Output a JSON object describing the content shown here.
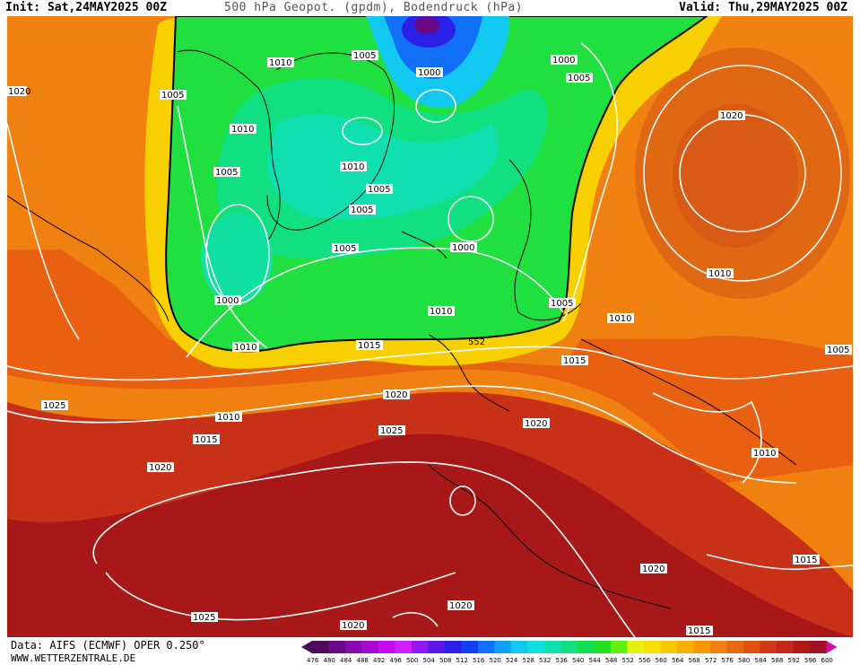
{
  "header": {
    "init": "Init: Sat,24MAY2025 00Z",
    "title": "500 hPa Geopot. (gpdm), Bodendruck (hPa)",
    "valid": "Valid: Thu,29MAY2025 00Z"
  },
  "footer": {
    "data_source": "Data: AIFS (ECMWF) OPER 0.250°",
    "website": "WWW.WETTERZENTRALE.DE"
  },
  "colorbar": {
    "ticks": [
      "476",
      "480",
      "484",
      "488",
      "492",
      "496",
      "500",
      "504",
      "508",
      "512",
      "516",
      "520",
      "524",
      "528",
      "532",
      "536",
      "540",
      "544",
      "548",
      "552",
      "556",
      "560",
      "564",
      "568",
      "572",
      "576",
      "580",
      "584",
      "588",
      "592",
      "596",
      "600"
    ],
    "colors": [
      "#4b0a5a",
      "#6a0a8a",
      "#8a0ab0",
      "#a80ad0",
      "#c80af0",
      "#d020f8",
      "#9018f0",
      "#5a18e8",
      "#2a20e8",
      "#1040f0",
      "#1070f8",
      "#10a0f8",
      "#10c8f0",
      "#10e0e0",
      "#10e0b0",
      "#10e080",
      "#10e050",
      "#20e020",
      "#60f010",
      "#e8f010",
      "#f8e000",
      "#f8c800",
      "#f8b000",
      "#f89800",
      "#f08010",
      "#e86810",
      "#e05010",
      "#d03818",
      "#c02818",
      "#b01818",
      "#a01020",
      "#d010a0"
    ]
  },
  "map": {
    "key_contour": "552",
    "pressure_labels": [
      "1010",
      "1005",
      "1005",
      "1000",
      "1000",
      "1005",
      "1020",
      "1010",
      "1005",
      "1010",
      "1005",
      "1005",
      "1000",
      "1005",
      "1000",
      "1010",
      "1005",
      "1010",
      "1010",
      "1010",
      "1015",
      "552",
      "1015",
      "1005",
      "1020",
      "1025",
      "1010",
      "1020",
      "1015",
      "1020",
      "1025",
      "1010",
      "1020",
      "1025",
      "1020",
      "1020",
      "1015",
      "1015",
      "1020"
    ]
  }
}
